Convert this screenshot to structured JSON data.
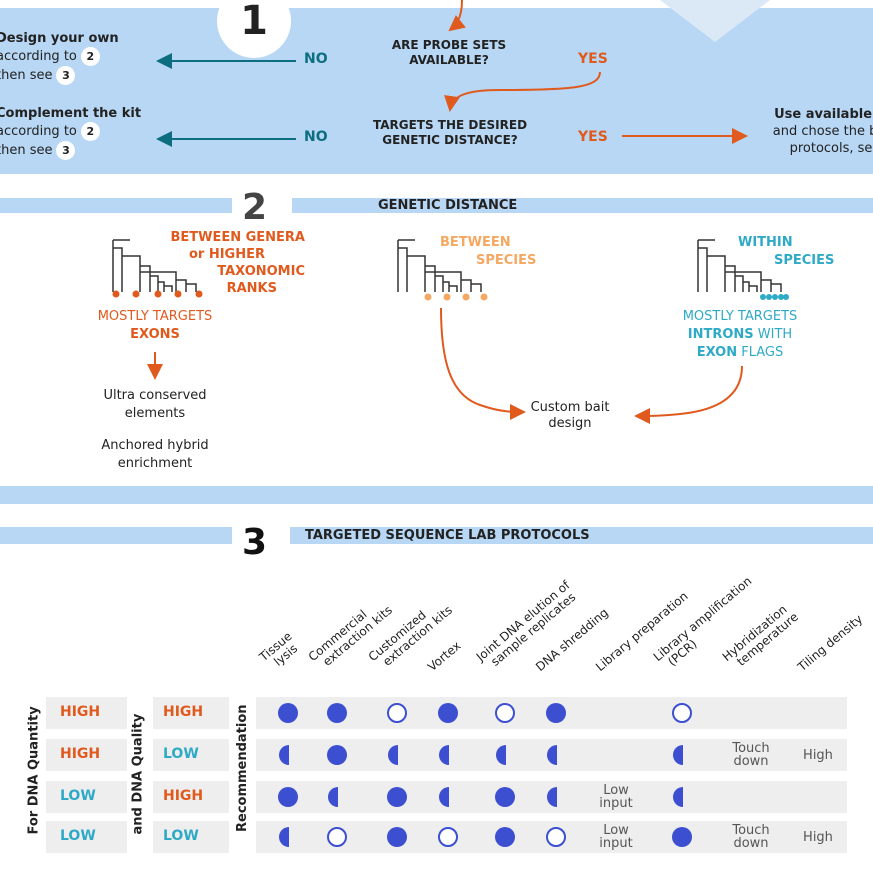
{
  "section1": {
    "number": "1",
    "question1": "ARE PROBE SETS AVAILABLE?",
    "question2": "TARGETS THE DESIRED GENETIC DISTANCE?",
    "no": "NO",
    "yes": "YES",
    "left1": {
      "title": "Design your own",
      "line2": "according to",
      "line3": "then see",
      "ref2": "2",
      "ref3": "3"
    },
    "left2": {
      "title": "Complement the kit",
      "line2": "according to",
      "line3": "then see",
      "ref2": "2",
      "ref3": "3"
    },
    "right": {
      "title": "Use available kit",
      "line2": "and chose the best",
      "line3": "protocols, see"
    }
  },
  "section2": {
    "number": "2",
    "title": "GENETIC DISTANCE",
    "genera": "BETWEEN GENERA or HIGHER TAXONOMIC RANKS",
    "genera_l1": "BETWEEN GENERA",
    "genera_l2": "or HIGHER",
    "genera_l3": "TAXONOMIC",
    "genera_l4": "RANKS",
    "species_l1": "BETWEEN",
    "species_l2": "SPECIES",
    "within_l1": "WITHIN",
    "within_l2": "SPECIES",
    "exons_l1": "MOSTLY TARGETS",
    "exons_l2": "EXONS",
    "introns_l1": "MOSTLY TARGETS",
    "introns_l2a": "INTRONS",
    "introns_l2b": " WITH",
    "introns_l3a": "EXON",
    "introns_l3b": " FLAGS",
    "uce_l1": "Ultra conserved",
    "uce_l2": "elements",
    "ahe_l1": "Anchored hybrid",
    "ahe_l2": "enrichment",
    "custom_l1": "Custom bait",
    "custom_l2": "design"
  },
  "section3": {
    "number": "3",
    "title": "TARGETED SEQUENCE LAB PROTOCOLS",
    "label_quantity": "For DNA Quantity",
    "label_quality": "and DNA Quality",
    "label_recommendation": "Recommendation",
    "columns": [
      [
        "Tissue",
        "lysis"
      ],
      [
        "Commercial",
        "extraction kits"
      ],
      [
        "Customized",
        "extraction kits"
      ],
      [
        "Vortex"
      ],
      [
        "Joint DNA elution of",
        "sample replicates"
      ],
      [
        "DNA shredding"
      ],
      [
        "Library preparation"
      ],
      [
        "Library amplification",
        "(PCR)"
      ],
      [
        "Hybridization",
        "temperature"
      ],
      [
        "Tiling density"
      ]
    ],
    "rows": [
      {
        "quantity": "HIGH",
        "quality": "HIGH",
        "cells": [
          "full",
          "full",
          "empty",
          "full",
          "empty",
          "full",
          "",
          "empty",
          "",
          ""
        ]
      },
      {
        "quantity": "HIGH",
        "quality": "LOW",
        "cells": [
          "half",
          "full",
          "half",
          "half",
          "half",
          "half",
          "",
          "half",
          "Touch down",
          "High"
        ]
      },
      {
        "quantity": "LOW",
        "quality": "HIGH",
        "cells": [
          "full",
          "half",
          "full",
          "half",
          "full",
          "half",
          "Low input",
          "half",
          "",
          ""
        ]
      },
      {
        "quantity": "LOW",
        "quality": "LOW",
        "cells": [
          "half",
          "empty",
          "full",
          "empty",
          "full",
          "empty",
          "Low input",
          "full",
          "Touch down",
          "High"
        ]
      }
    ],
    "colors": {
      "high": "#e05a1e",
      "low": "#2eaac7",
      "dot": "#3c4fd1"
    }
  }
}
